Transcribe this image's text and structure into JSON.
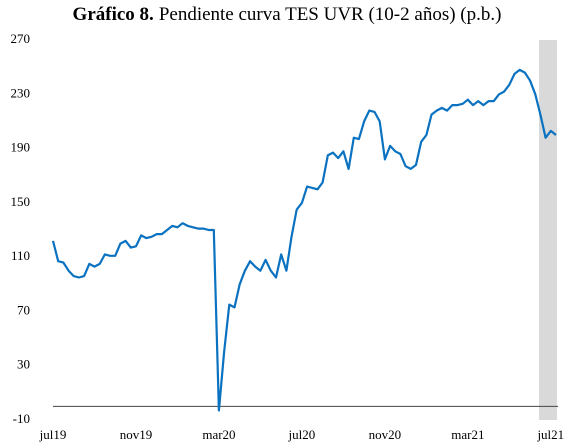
{
  "chart_data": {
    "type": "line",
    "title_label": "Gráfico 8.",
    "title": "Pendiente curva TES UVR (10-2 años) (p.b.)",
    "categories": [
      "jul19",
      null,
      null,
      null,
      null,
      null,
      null,
      null,
      null,
      null,
      null,
      null,
      null,
      null,
      null,
      null,
      "nov19",
      null,
      null,
      null,
      null,
      null,
      null,
      null,
      null,
      null,
      null,
      null,
      null,
      null,
      null,
      null,
      "mar20",
      null,
      null,
      null,
      null,
      null,
      null,
      null,
      null,
      null,
      null,
      null,
      null,
      null,
      null,
      null,
      "jul20",
      null,
      null,
      null,
      null,
      null,
      null,
      null,
      null,
      null,
      null,
      null,
      null,
      null,
      null,
      null,
      "nov20",
      null,
      null,
      null,
      null,
      null,
      null,
      null,
      null,
      null,
      null,
      null,
      null,
      null,
      null,
      null,
      "mar21",
      null,
      null,
      null,
      null,
      null,
      null,
      null,
      null,
      null,
      null,
      null,
      null,
      null,
      null,
      null,
      "jul21",
      null
    ],
    "series": [
      {
        "color": "#0a72c0",
        "values": [
          122,
          107,
          106,
          100,
          96,
          95,
          96,
          105,
          103,
          105,
          112,
          111,
          111,
          120,
          122,
          117,
          118,
          126,
          124,
          125,
          127,
          127,
          130,
          133,
          132,
          135,
          133,
          132,
          131,
          131,
          130,
          130,
          -3,
          40,
          75,
          73,
          90,
          100,
          107,
          103,
          100,
          108,
          100,
          95,
          112,
          100,
          125,
          145,
          150,
          162,
          161,
          160,
          165,
          185,
          187,
          183,
          188,
          175,
          198,
          197,
          210,
          218,
          217,
          210,
          182,
          192,
          188,
          186,
          177,
          175,
          178,
          195,
          200,
          215,
          218,
          220,
          218,
          222,
          222,
          223,
          226,
          222,
          225,
          222,
          225,
          225,
          230,
          232,
          237,
          245,
          248,
          246,
          240,
          230,
          215,
          198,
          203,
          200
        ]
      }
    ],
    "ylim": [
      -10,
      270
    ],
    "yticks": [
      -10,
      30,
      70,
      110,
      150,
      190,
      230,
      270
    ]
  }
}
